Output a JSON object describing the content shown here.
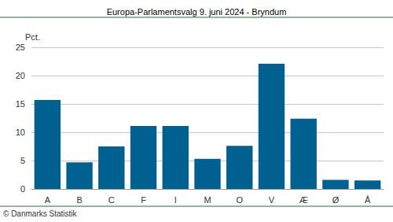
{
  "chart_data": {
    "type": "bar",
    "title": "Europa-Parlamentsvalg 9. juni 2024 - Bryndum",
    "y_label": "Pct.",
    "source": "© Danmarks Statistik",
    "categories": [
      "A",
      "B",
      "C",
      "F",
      "I",
      "M",
      "O",
      "V",
      "Æ",
      "Ø",
      "Å"
    ],
    "values": [
      15.7,
      4.7,
      7.5,
      11.1,
      11.1,
      5.3,
      7.6,
      22.1,
      12.4,
      1.6,
      1.5
    ],
    "color": "#00608f",
    "ylim": [
      0,
      25
    ],
    "yticks": [
      0,
      5,
      10,
      15,
      20,
      25
    ],
    "grid": true
  }
}
